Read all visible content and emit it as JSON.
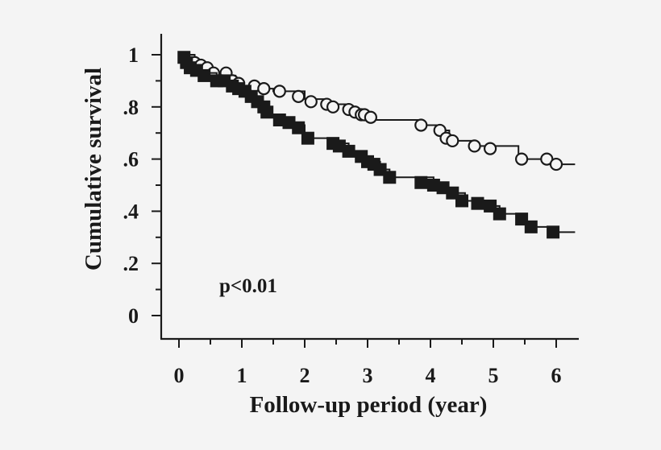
{
  "chart_data": {
    "type": "line",
    "title": "",
    "xlabel": "Follow-up period (year)",
    "ylabel": "Cumulative survival",
    "xlim": [
      0,
      6.3
    ],
    "ylim": [
      0,
      1
    ],
    "x_ticks": [
      0,
      1,
      2,
      3,
      4,
      5,
      6
    ],
    "x_tick_labels": [
      "0",
      "1",
      "2",
      "3",
      "4",
      "5",
      "6"
    ],
    "y_ticks": [
      0,
      0.2,
      0.4,
      0.6,
      0.8,
      1
    ],
    "y_tick_labels": [
      "0",
      ".2",
      ".4",
      ".6",
      ".8",
      "1"
    ],
    "annotation": "p<0.01",
    "grid": false,
    "colors": {
      "line": "#1a1a1a",
      "background": "#f4f4f4"
    },
    "series": [
      {
        "marker": "open-circle",
        "steps": [
          [
            0,
            1.0
          ],
          [
            0.25,
            0.97
          ],
          [
            0.4,
            0.95
          ],
          [
            0.55,
            0.93
          ],
          [
            0.8,
            0.92
          ],
          [
            0.9,
            0.9
          ],
          [
            1.0,
            0.88
          ],
          [
            1.25,
            0.87
          ],
          [
            1.5,
            0.86
          ],
          [
            2.0,
            0.83
          ],
          [
            2.3,
            0.81
          ],
          [
            2.7,
            0.79
          ],
          [
            2.85,
            0.77
          ],
          [
            3.0,
            0.75
          ],
          [
            3.8,
            0.73
          ],
          [
            4.1,
            0.71
          ],
          [
            4.3,
            0.67
          ],
          [
            4.7,
            0.65
          ],
          [
            5.4,
            0.6
          ],
          [
            5.9,
            0.58
          ],
          [
            6.3,
            0.58
          ]
        ],
        "markers": [
          [
            0.25,
            0.97
          ],
          [
            0.35,
            0.96
          ],
          [
            0.45,
            0.95
          ],
          [
            0.55,
            0.93
          ],
          [
            0.75,
            0.93
          ],
          [
            0.85,
            0.9
          ],
          [
            0.95,
            0.89
          ],
          [
            1.2,
            0.88
          ],
          [
            1.35,
            0.87
          ],
          [
            1.6,
            0.86
          ],
          [
            1.9,
            0.84
          ],
          [
            2.1,
            0.82
          ],
          [
            2.35,
            0.81
          ],
          [
            2.45,
            0.8
          ],
          [
            2.7,
            0.79
          ],
          [
            2.8,
            0.78
          ],
          [
            2.9,
            0.77
          ],
          [
            2.95,
            0.77
          ],
          [
            3.05,
            0.76
          ],
          [
            3.85,
            0.73
          ],
          [
            4.15,
            0.71
          ],
          [
            4.25,
            0.68
          ],
          [
            4.35,
            0.67
          ],
          [
            4.7,
            0.65
          ],
          [
            4.95,
            0.64
          ],
          [
            5.45,
            0.6
          ],
          [
            5.85,
            0.6
          ],
          [
            6.0,
            0.58
          ]
        ]
      },
      {
        "marker": "filled-square",
        "steps": [
          [
            0,
            1.0
          ],
          [
            0.15,
            0.95
          ],
          [
            0.3,
            0.93
          ],
          [
            0.6,
            0.9
          ],
          [
            0.85,
            0.88
          ],
          [
            1.0,
            0.86
          ],
          [
            1.15,
            0.84
          ],
          [
            1.3,
            0.8
          ],
          [
            1.4,
            0.77
          ],
          [
            1.6,
            0.75
          ],
          [
            1.8,
            0.73
          ],
          [
            2.0,
            0.68
          ],
          [
            2.4,
            0.66
          ],
          [
            2.7,
            0.63
          ],
          [
            2.9,
            0.61
          ],
          [
            3.0,
            0.59
          ],
          [
            3.2,
            0.56
          ],
          [
            3.35,
            0.53
          ],
          [
            4.05,
            0.5
          ],
          [
            4.2,
            0.49
          ],
          [
            4.4,
            0.47
          ],
          [
            4.55,
            0.44
          ],
          [
            4.9,
            0.42
          ],
          [
            5.1,
            0.39
          ],
          [
            5.45,
            0.36
          ],
          [
            5.6,
            0.34
          ],
          [
            5.95,
            0.32
          ],
          [
            6.3,
            0.32
          ]
        ],
        "markers": [
          [
            0.08,
            0.99
          ],
          [
            0.12,
            0.97
          ],
          [
            0.18,
            0.95
          ],
          [
            0.28,
            0.94
          ],
          [
            0.4,
            0.92
          ],
          [
            0.6,
            0.9
          ],
          [
            0.72,
            0.9
          ],
          [
            0.85,
            0.88
          ],
          [
            0.95,
            0.87
          ],
          [
            1.05,
            0.86
          ],
          [
            1.15,
            0.84
          ],
          [
            1.25,
            0.82
          ],
          [
            1.35,
            0.8
          ],
          [
            1.4,
            0.78
          ],
          [
            1.6,
            0.75
          ],
          [
            1.75,
            0.74
          ],
          [
            1.9,
            0.72
          ],
          [
            2.05,
            0.68
          ],
          [
            2.45,
            0.66
          ],
          [
            2.55,
            0.65
          ],
          [
            2.7,
            0.63
          ],
          [
            2.9,
            0.61
          ],
          [
            3.0,
            0.59
          ],
          [
            3.1,
            0.58
          ],
          [
            3.2,
            0.56
          ],
          [
            3.35,
            0.53
          ],
          [
            3.85,
            0.51
          ],
          [
            4.05,
            0.5
          ],
          [
            4.2,
            0.49
          ],
          [
            4.35,
            0.47
          ],
          [
            4.5,
            0.44
          ],
          [
            4.75,
            0.43
          ],
          [
            4.95,
            0.42
          ],
          [
            5.1,
            0.39
          ],
          [
            5.45,
            0.37
          ],
          [
            5.6,
            0.34
          ],
          [
            5.95,
            0.32
          ]
        ]
      }
    ]
  }
}
